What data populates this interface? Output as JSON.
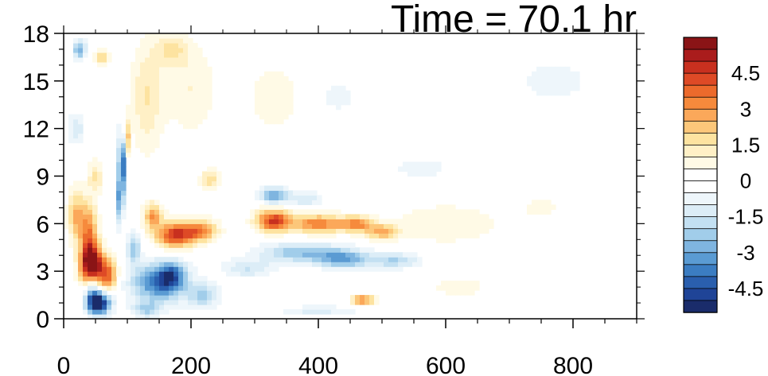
{
  "chart_data": {
    "type": "heatmap",
    "title": "Time = 70.1 hr",
    "xlabel": "",
    "ylabel": "",
    "xlim": [
      0,
      900
    ],
    "ylim": [
      0,
      18
    ],
    "x_ticks": [
      0,
      200,
      400,
      600,
      800
    ],
    "x_tick_labels": [
      "0",
      "200",
      "400",
      "600",
      "800"
    ],
    "y_ticks": [
      0,
      3,
      6,
      9,
      12,
      15,
      18
    ],
    "y_tick_labels": [
      "0",
      "3",
      "6",
      "9",
      "12",
      "15",
      "18"
    ],
    "grid": false,
    "legend": "colorbar-right",
    "colorbar": {
      "levels": [
        -5.5,
        -5,
        -4.5,
        -4,
        -3.5,
        -3,
        -2.5,
        -2,
        -1.5,
        -1,
        -0.5,
        0,
        0.5,
        1,
        1.5,
        2,
        2.5,
        3,
        3.5,
        4,
        4.5,
        5,
        5.5
      ],
      "colors": [
        "#1a2c6b",
        "#1f4497",
        "#2a5fae",
        "#3b7dc2",
        "#5a9bd3",
        "#7fb5e0",
        "#a1cdea",
        "#c3e0f2",
        "#dcedf7",
        "#eef6fb",
        "#ffffff",
        "#ffffff",
        "#fffae6",
        "#fff0c6",
        "#fde3a0",
        "#fcc77a",
        "#fba85a",
        "#f68a3c",
        "#ec6a2c",
        "#de4a26",
        "#c8301f",
        "#aa1c1c",
        "#8a1416"
      ],
      "tick_values": [
        4.5,
        3,
        1.5,
        0,
        -1.5,
        -3,
        -4.5
      ],
      "tick_labels": [
        "4.5",
        "3",
        "1.5",
        "0",
        "-1.5",
        "-3",
        "-4.5"
      ]
    },
    "features": [
      {
        "x": 55,
        "y": 1.0,
        "sx": 18,
        "sy": 0.7,
        "v": -6
      },
      {
        "x": 45,
        "y": 2.0,
        "sx": 12,
        "sy": 1.2,
        "v": -3
      },
      {
        "x": 45,
        "y": 3.3,
        "sx": 18,
        "sy": 1.2,
        "v": 6
      },
      {
        "x": 70,
        "y": 2.8,
        "sx": 14,
        "sy": 1.0,
        "v": 3.5
      },
      {
        "x": 40,
        "y": 5.0,
        "sx": 14,
        "sy": 2.2,
        "v": 3.5
      },
      {
        "x": 20,
        "y": 6.5,
        "sx": 14,
        "sy": 1.6,
        "v": 2.5
      },
      {
        "x": 150,
        "y": 2.3,
        "sx": 42,
        "sy": 1.2,
        "v": -4
      },
      {
        "x": 170,
        "y": 2.8,
        "sx": 20,
        "sy": 0.8,
        "v": -2.5
      },
      {
        "x": 220,
        "y": 1.5,
        "sx": 25,
        "sy": 0.8,
        "v": -2
      },
      {
        "x": 130,
        "y": 0.6,
        "sx": 22,
        "sy": 0.5,
        "v": -2
      },
      {
        "x": 92,
        "y": 10.0,
        "sx": 6,
        "sy": 2.0,
        "v": -4.5
      },
      {
        "x": 98,
        "y": 11.5,
        "sx": 4,
        "sy": 1.2,
        "v": 4
      },
      {
        "x": 88,
        "y": 7.5,
        "sx": 5,
        "sy": 1.5,
        "v": -3
      },
      {
        "x": 110,
        "y": 4.5,
        "sx": 10,
        "sy": 1.0,
        "v": -2.5
      },
      {
        "x": 175,
        "y": 5.3,
        "sx": 30,
        "sy": 0.8,
        "v": 4.5
      },
      {
        "x": 215,
        "y": 5.6,
        "sx": 28,
        "sy": 0.7,
        "v": 3
      },
      {
        "x": 140,
        "y": 6.5,
        "sx": 15,
        "sy": 0.8,
        "v": 3
      },
      {
        "x": 230,
        "y": 8.8,
        "sx": 15,
        "sy": 0.6,
        "v": 2
      },
      {
        "x": 330,
        "y": 6.2,
        "sx": 28,
        "sy": 0.7,
        "v": 4.5
      },
      {
        "x": 400,
        "y": 6.0,
        "sx": 40,
        "sy": 0.6,
        "v": 3.5
      },
      {
        "x": 460,
        "y": 6.0,
        "sx": 25,
        "sy": 0.5,
        "v": 3
      },
      {
        "x": 500,
        "y": 5.5,
        "sx": 25,
        "sy": 0.5,
        "v": 2.5
      },
      {
        "x": 600,
        "y": 6.0,
        "sx": 90,
        "sy": 1.3,
        "v": 1
      },
      {
        "x": 330,
        "y": 7.8,
        "sx": 22,
        "sy": 0.5,
        "v": -3
      },
      {
        "x": 380,
        "y": 7.6,
        "sx": 25,
        "sy": 0.5,
        "v": -1.5
      },
      {
        "x": 370,
        "y": 4.2,
        "sx": 60,
        "sy": 0.6,
        "v": -2.5
      },
      {
        "x": 440,
        "y": 3.8,
        "sx": 40,
        "sy": 0.6,
        "v": -3
      },
      {
        "x": 520,
        "y": 3.7,
        "sx": 40,
        "sy": 0.5,
        "v": -2
      },
      {
        "x": 290,
        "y": 3.2,
        "sx": 40,
        "sy": 0.6,
        "v": -1.5
      },
      {
        "x": 470,
        "y": 1.2,
        "sx": 18,
        "sy": 0.3,
        "v": 3.5
      },
      {
        "x": 400,
        "y": 0.5,
        "sx": 60,
        "sy": 0.3,
        "v": -1.2
      },
      {
        "x": 130,
        "y": 14.0,
        "sx": 25,
        "sy": 3.5,
        "v": 1.5
      },
      {
        "x": 200,
        "y": 14.5,
        "sx": 40,
        "sy": 3.0,
        "v": 1.0
      },
      {
        "x": 170,
        "y": 17.0,
        "sx": 25,
        "sy": 1.0,
        "v": 1.5
      },
      {
        "x": 25,
        "y": 17.0,
        "sx": 10,
        "sy": 0.6,
        "v": -3
      },
      {
        "x": 60,
        "y": 16.5,
        "sx": 10,
        "sy": 0.6,
        "v": 2
      },
      {
        "x": 20,
        "y": 12.0,
        "sx": 12,
        "sy": 1.0,
        "v": -1.5
      },
      {
        "x": 50,
        "y": 9.0,
        "sx": 12,
        "sy": 1.0,
        "v": 1.5
      },
      {
        "x": 330,
        "y": 14.0,
        "sx": 40,
        "sy": 2.0,
        "v": 1.0
      },
      {
        "x": 560,
        "y": 9.5,
        "sx": 60,
        "sy": 0.8,
        "v": -0.7
      },
      {
        "x": 770,
        "y": 15.0,
        "sx": 70,
        "sy": 1.8,
        "v": -0.7
      },
      {
        "x": 430,
        "y": 14.0,
        "sx": 30,
        "sy": 1.0,
        "v": -0.8
      },
      {
        "x": 620,
        "y": 2.0,
        "sx": 60,
        "sy": 0.8,
        "v": 0.7
      },
      {
        "x": 750,
        "y": 7.0,
        "sx": 30,
        "sy": 0.6,
        "v": 0.8
      }
    ]
  }
}
